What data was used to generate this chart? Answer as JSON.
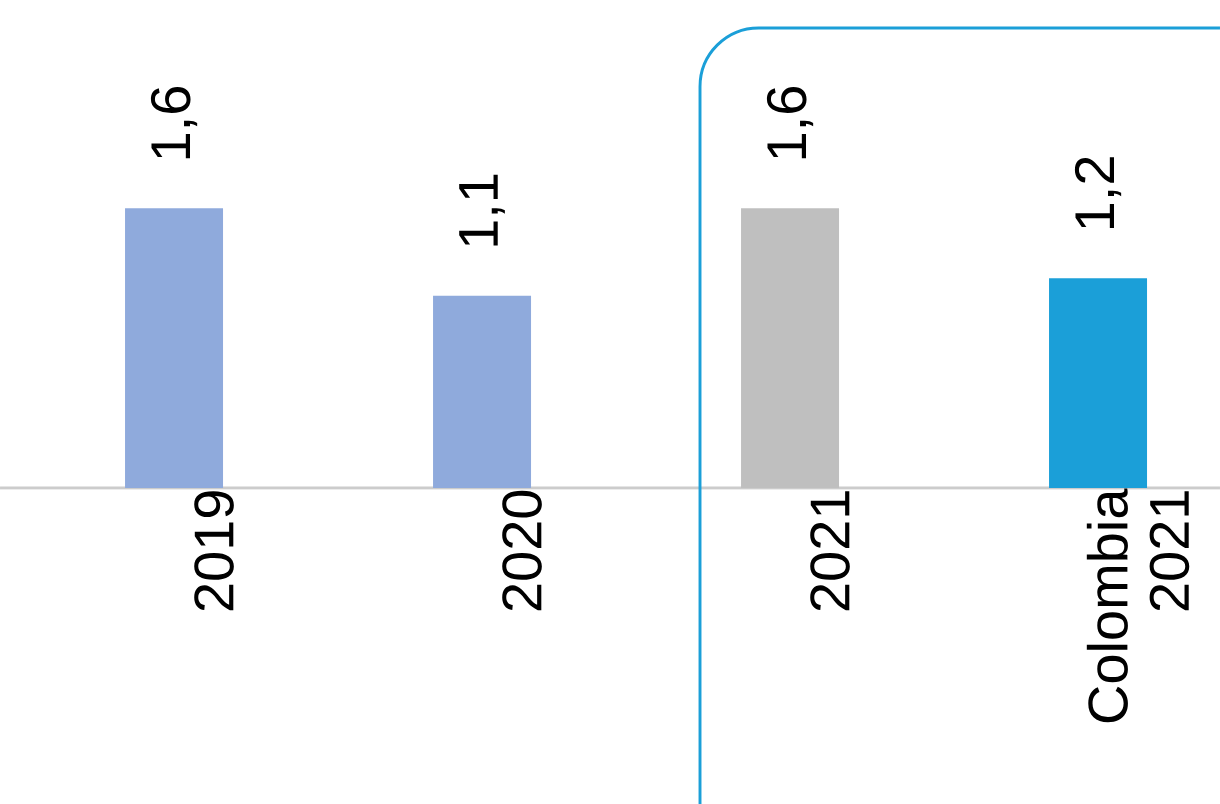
{
  "chart_data": {
    "type": "bar",
    "categories": [
      "2019",
      "2020",
      "2021",
      "Colombia 2021"
    ],
    "values": [
      1.6,
      1.1,
      1.6,
      1.2
    ],
    "colors": [
      "#8faadc",
      "#8faadc",
      "#bfbfbf",
      "#1b9fd8"
    ],
    "value_labels": [
      "1,6",
      "1,1",
      "1,6",
      "1,2"
    ]
  }
}
